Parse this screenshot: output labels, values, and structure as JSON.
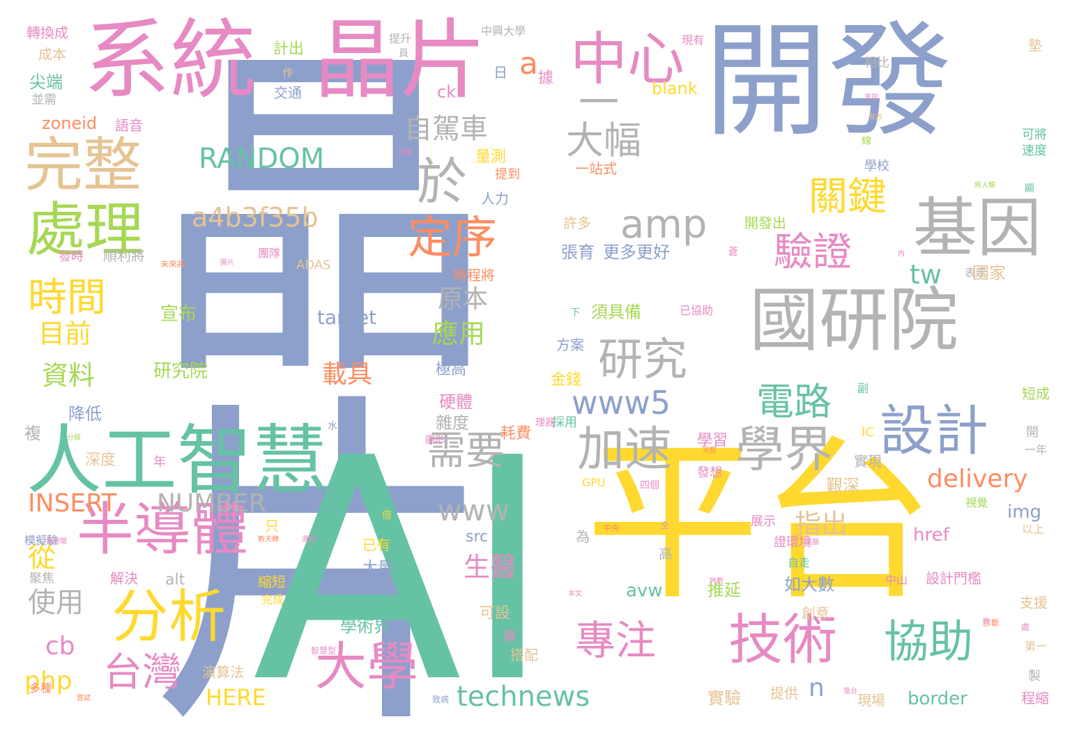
{
  "palette": {
    "blue": "#8da0cb",
    "green": "#66c2a5",
    "orange": "#fc8d62",
    "pink": "#e78ac3",
    "lime": "#a6d854",
    "yellow": "#ffd92f",
    "tan": "#e5c494",
    "gray": "#b3b3b3"
  },
  "words": [
    {
      "text": "晶片",
      "color": "blue",
      "vertical": true
    },
    {
      "text": "AI",
      "color": "green"
    },
    {
      "text": "開發",
      "color": "blue"
    },
    {
      "text": "平台",
      "color": "yellow"
    },
    {
      "text": "系統",
      "color": "pink"
    },
    {
      "text": "晶片",
      "color": "pink"
    },
    {
      "text": "國研院",
      "color": "gray"
    },
    {
      "text": "人工智慧",
      "color": "green"
    },
    {
      "text": "一",
      "color": "gray"
    },
    {
      "text": "中心",
      "color": "pink"
    },
    {
      "text": "基因",
      "color": "gray"
    },
    {
      "text": "完整",
      "color": "tan"
    },
    {
      "text": "處理",
      "color": "lime"
    },
    {
      "text": "分析",
      "color": "yellow"
    },
    {
      "text": "半導體",
      "color": "pink"
    },
    {
      "text": "設計",
      "color": "blue"
    },
    {
      "text": "技術",
      "color": "pink"
    },
    {
      "text": "學界",
      "color": "gray"
    },
    {
      "text": "加速",
      "color": "gray"
    },
    {
      "text": "研究",
      "color": "gray"
    },
    {
      "text": "大學",
      "color": "pink"
    },
    {
      "text": "協助",
      "color": "green"
    },
    {
      "text": "於",
      "color": "gray"
    },
    {
      "text": "amp",
      "color": "gray"
    },
    {
      "text": "大幅",
      "color": "gray"
    },
    {
      "text": "定序",
      "color": "orange"
    },
    {
      "text": "需要",
      "color": "gray"
    },
    {
      "text": "時間",
      "color": "yellow"
    },
    {
      "text": "專注",
      "color": "pink"
    },
    {
      "text": "台灣",
      "color": "pink"
    },
    {
      "text": "電路",
      "color": "green"
    },
    {
      "text": "驗證",
      "color": "pink"
    },
    {
      "text": "關鍵",
      "color": "yellow"
    },
    {
      "text": "technews",
      "color": "green"
    },
    {
      "text": "RANDOM",
      "color": "green"
    },
    {
      "text": "a4b3f35b",
      "color": "tan"
    },
    {
      "text": "www5",
      "color": "blue"
    },
    {
      "text": "自駕車",
      "color": "gray"
    },
    {
      "text": "www",
      "color": "gray"
    },
    {
      "text": "INSERT",
      "color": "orange"
    },
    {
      "text": "NUMBER",
      "color": "gray"
    },
    {
      "text": "delivery",
      "color": "orange"
    },
    {
      "text": "a",
      "color": "orange"
    },
    {
      "text": "tw",
      "color": "green"
    },
    {
      "text": "指出",
      "color": "tan"
    },
    {
      "text": "目前",
      "color": "yellow"
    },
    {
      "text": "資料",
      "color": "lime"
    },
    {
      "text": "應用",
      "color": "lime"
    },
    {
      "text": "原本",
      "color": "gray"
    },
    {
      "text": "生醫",
      "color": "pink"
    },
    {
      "text": "載具",
      "color": "orange"
    },
    {
      "text": "使用",
      "color": "gray"
    },
    {
      "text": "cb",
      "color": "pink"
    },
    {
      "text": "php",
      "color": "yellow"
    },
    {
      "text": "HERE",
      "color": "yellow"
    },
    {
      "text": "從",
      "color": "yellow"
    },
    {
      "text": "n",
      "color": "blue"
    },
    {
      "text": "target",
      "color": "blue"
    },
    {
      "text": "宣布",
      "color": "lime"
    },
    {
      "text": "研究院",
      "color": "lime"
    },
    {
      "text": "張育",
      "color": "blue"
    },
    {
      "text": "更多更好",
      "color": "blue"
    },
    {
      "text": "須具備",
      "color": "lime"
    },
    {
      "text": "blank",
      "color": "yellow"
    },
    {
      "text": "img",
      "color": "blue"
    },
    {
      "text": "href",
      "color": "pink"
    },
    {
      "text": "avw",
      "color": "green"
    },
    {
      "text": "border",
      "color": "green"
    },
    {
      "text": "ck",
      "color": "pink"
    },
    {
      "text": "alt",
      "color": "gray"
    },
    {
      "text": "src",
      "color": "blue"
    },
    {
      "text": "zoneid",
      "color": "orange"
    },
    {
      "text": "ADAS",
      "color": "tan"
    },
    {
      "text": "GPU",
      "color": "yellow"
    },
    {
      "text": "IC",
      "color": "yellow"
    },
    {
      "text": "如大數",
      "color": "blue"
    },
    {
      "text": "設計門檻",
      "color": "pink"
    },
    {
      "text": "學術界",
      "color": "green"
    },
    {
      "text": "大量",
      "color": "blue"
    },
    {
      "text": "實驗",
      "color": "tan"
    },
    {
      "text": "推延",
      "color": "lime"
    },
    {
      "text": "學習",
      "color": "pink"
    },
    {
      "text": "艱深",
      "color": "tan"
    },
    {
      "text": "雜度",
      "color": "gray"
    },
    {
      "text": "硬體",
      "color": "pink"
    },
    {
      "text": "金錢",
      "color": "yellow"
    },
    {
      "text": "方案",
      "color": "blue"
    },
    {
      "text": "極高",
      "color": "blue"
    },
    {
      "text": "耗費",
      "color": "orange"
    },
    {
      "text": "時程將",
      "color": "orange"
    },
    {
      "text": "國家",
      "color": "tan"
    },
    {
      "text": "許多",
      "color": "tan"
    },
    {
      "text": "開發出",
      "color": "lime"
    },
    {
      "text": "一站式",
      "color": "orange"
    },
    {
      "text": "量測",
      "color": "yellow"
    },
    {
      "text": "提到",
      "color": "orange"
    },
    {
      "text": "人力",
      "color": "blue"
    },
    {
      "text": "計出",
      "color": "lime"
    },
    {
      "text": "交通",
      "color": "blue"
    },
    {
      "text": "據",
      "color": "pink"
    },
    {
      "text": "日",
      "color": "blue"
    },
    {
      "text": "轉換成",
      "color": "pink"
    },
    {
      "text": "成本",
      "color": "tan"
    },
    {
      "text": "尖端",
      "color": "green"
    },
    {
      "text": "並需",
      "color": "gray"
    },
    {
      "text": "語音",
      "color": "pink"
    },
    {
      "text": "順利將",
      "color": "gray"
    },
    {
      "text": "發時",
      "color": "pink"
    },
    {
      "text": "降低",
      "color": "blue"
    },
    {
      "text": "深度",
      "color": "tan"
    },
    {
      "text": "解決",
      "color": "pink"
    },
    {
      "text": "縮短",
      "color": "yellow"
    },
    {
      "text": "演算法",
      "color": "tan"
    },
    {
      "text": "可設",
      "color": "tan"
    },
    {
      "text": "搭配",
      "color": "tan"
    },
    {
      "text": "讓",
      "color": "pink"
    },
    {
      "text": "提供",
      "color": "tan"
    },
    {
      "text": "創意",
      "color": "tan"
    },
    {
      "text": "支援",
      "color": "tan"
    },
    {
      "text": "短成",
      "color": "lime"
    },
    {
      "text": "可將",
      "color": "green"
    },
    {
      "text": "速度",
      "color": "green"
    },
    {
      "text": "學校",
      "color": "blue"
    },
    {
      "text": "相比",
      "color": "gray"
    },
    {
      "text": "墊",
      "color": "tan"
    },
    {
      "text": "現有",
      "color": "pink"
    },
    {
      "text": "中興大學",
      "color": "gray"
    },
    {
      "text": "提升",
      "color": "gray"
    },
    {
      "text": "員",
      "color": "gray"
    },
    {
      "text": "作",
      "color": "tan"
    },
    {
      "text": "表示",
      "color": "gray"
    },
    {
      "text": "實現",
      "color": "gray"
    },
    {
      "text": "一年",
      "color": "gray"
    },
    {
      "text": "視覺",
      "color": "lime"
    },
    {
      "text": "以上",
      "color": "tan"
    },
    {
      "text": "展示",
      "color": "pink"
    },
    {
      "text": "自走",
      "color": "green"
    },
    {
      "text": "中山",
      "color": "pink"
    },
    {
      "text": "程縮",
      "color": "pink"
    },
    {
      "text": "現場",
      "color": "tan"
    },
    {
      "text": "第一",
      "color": "tan"
    },
    {
      "text": "製",
      "color": "gray"
    },
    {
      "text": "複",
      "color": "gray"
    },
    {
      "text": "模擬驗",
      "color": "blue"
    },
    {
      "text": "多種",
      "color": "orange"
    },
    {
      "text": "聚焦",
      "color": "gray"
    },
    {
      "text": "完成",
      "color": "yellow"
    },
    {
      "text": "已有",
      "color": "yellow"
    },
    {
      "text": "為",
      "color": "gray"
    },
    {
      "text": "高",
      "color": "gray"
    },
    {
      "text": "只",
      "color": "yellow"
    },
    {
      "text": "四個",
      "color": "pink"
    },
    {
      "text": "發想",
      "color": "pink"
    },
    {
      "text": "採用",
      "color": "green"
    },
    {
      "text": "副",
      "color": "green"
    },
    {
      "text": "開",
      "color": "gray"
    },
    {
      "text": "團隊",
      "color": "pink"
    },
    {
      "text": "已協助",
      "color": "pink"
    },
    {
      "text": "下",
      "color": "green"
    },
    {
      "text": "年",
      "color": "pink"
    },
    {
      "text": "證環境",
      "color": "pink"
    },
    {
      "text": "理器",
      "color": "pink"
    },
    {
      "text": "圖形",
      "color": "pink"
    },
    {
      "text": "水下",
      "color": "blue"
    },
    {
      "text": "未來將",
      "color": "orange"
    },
    {
      "text": "圖片",
      "color": "pink"
    },
    {
      "text": "蒼",
      "color": "pink"
    },
    {
      "text": "倍",
      "color": "yellow"
    },
    {
      "text": "中央",
      "color": "orange"
    },
    {
      "text": "全",
      "color": "pink"
    },
    {
      "text": "有效",
      "color": "tan"
    },
    {
      "text": "來說",
      "color": "pink"
    },
    {
      "text": "線",
      "color": "lime"
    },
    {
      "text": "顯",
      "color": "green"
    },
    {
      "text": "將人類",
      "color": "lime"
    },
    {
      "text": "技術",
      "color": "pink"
    },
    {
      "text": "內",
      "color": "pink"
    },
    {
      "text": "診斷",
      "color": "orange"
    },
    {
      "text": "數天轉",
      "color": "orange"
    },
    {
      "text": "分級",
      "color": "lime"
    },
    {
      "text": "需時間",
      "color": "pink"
    },
    {
      "text": "本文",
      "color": "pink"
    },
    {
      "text": "時數",
      "color": "pink"
    },
    {
      "text": "電腦",
      "color": "pink"
    },
    {
      "text": "電台",
      "color": "pink"
    },
    {
      "text": "完整",
      "color": "orange"
    },
    {
      "text": "智慧型",
      "color": "pink"
    },
    {
      "text": "致病",
      "color": "blue"
    },
    {
      "text": "嘗試",
      "color": "orange"
    },
    {
      "text": "處",
      "color": "pink"
    },
    {
      "text": "微",
      "color": "pink"
    },
    {
      "text": "選擇",
      "color": "pink"
    }
  ]
}
